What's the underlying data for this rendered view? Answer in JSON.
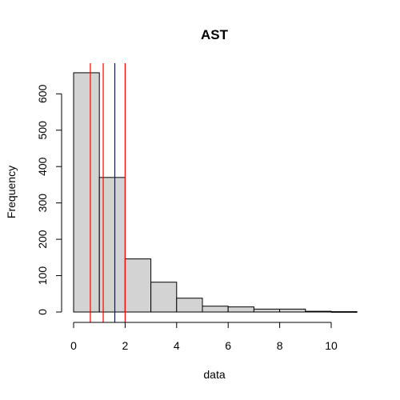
{
  "chart_data": {
    "type": "bar",
    "title": "AST",
    "xlabel": "data",
    "ylabel": "Frequency",
    "bins": [
      {
        "x0": 0,
        "x1": 1,
        "count": 658
      },
      {
        "x0": 1,
        "x1": 2,
        "count": 370
      },
      {
        "x0": 2,
        "x1": 3,
        "count": 146
      },
      {
        "x0": 3,
        "x1": 4,
        "count": 82
      },
      {
        "x0": 4,
        "x1": 5,
        "count": 38
      },
      {
        "x0": 5,
        "x1": 6,
        "count": 16
      },
      {
        "x0": 6,
        "x1": 7,
        "count": 14
      },
      {
        "x0": 7,
        "x1": 8,
        "count": 8
      },
      {
        "x0": 8,
        "x1": 9,
        "count": 8
      },
      {
        "x0": 9,
        "x1": 10,
        "count": 2
      },
      {
        "x0": 10,
        "x1": 11,
        "count": 1
      }
    ],
    "xlim": [
      0,
      11
    ],
    "ylim": [
      0,
      658
    ],
    "x_ticks": [
      0,
      2,
      4,
      6,
      8,
      10
    ],
    "y_ticks": [
      0,
      100,
      200,
      300,
      400,
      500,
      600
    ],
    "vlines": [
      {
        "x": 0.65,
        "color": "#ff0000"
      },
      {
        "x": 1.15,
        "color": "#ff0000"
      },
      {
        "x": 1.6,
        "color": "#0000ff"
      },
      {
        "x": 2.0,
        "color": "#ff0000"
      }
    ],
    "bar_fill": "#d3d3d3",
    "bar_stroke": "#000000",
    "grid": false
  }
}
